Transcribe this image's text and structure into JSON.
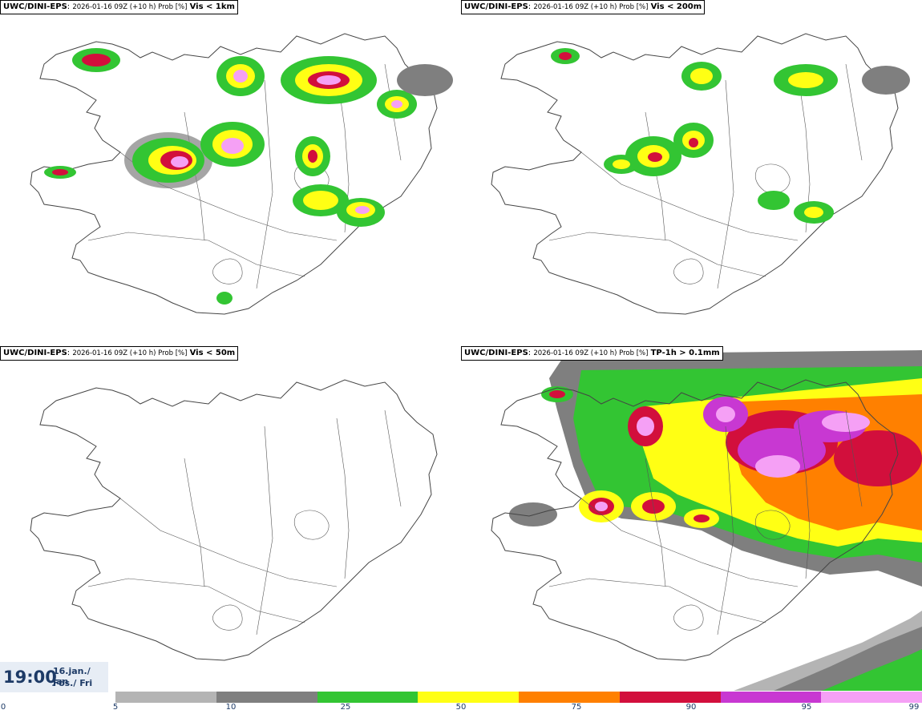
{
  "panels": [
    {
      "model": "UWC/DINI-EPS",
      "run": "2026-01-16 09Z (+10 h) Prob [%]",
      "variable": "Vis < 1km"
    },
    {
      "model": "UWC/DINI-EPS",
      "run": "2026-01-16 09Z (+10 h) Prob [%]",
      "variable": "Vis < 200m"
    },
    {
      "model": "UWC/DINI-EPS",
      "run": "2026-01-16 09Z (+10 h) Prob [%]",
      "variable": "Vis < 50m"
    },
    {
      "model": "UWC/DINI-EPS",
      "run": "2026-01-16 09Z (+10 h) Prob [%]",
      "variable": "TP-1h > 0.1mm"
    }
  ],
  "valid_time": {
    "time": "19:00",
    "date_line": "16.jan./ Jan",
    "day_line": "Fös./ Fri"
  },
  "colorbar": {
    "ticks": [
      "0",
      "5",
      "10",
      "25",
      "50",
      "75",
      "90",
      "95",
      "99"
    ],
    "colors": [
      "#b4b4b4",
      "#7f7f7f",
      "#33c533",
      "#ffff14",
      "#ff8000",
      "#d20f3c",
      "#c838d2",
      "#f5a0f5"
    ]
  }
}
